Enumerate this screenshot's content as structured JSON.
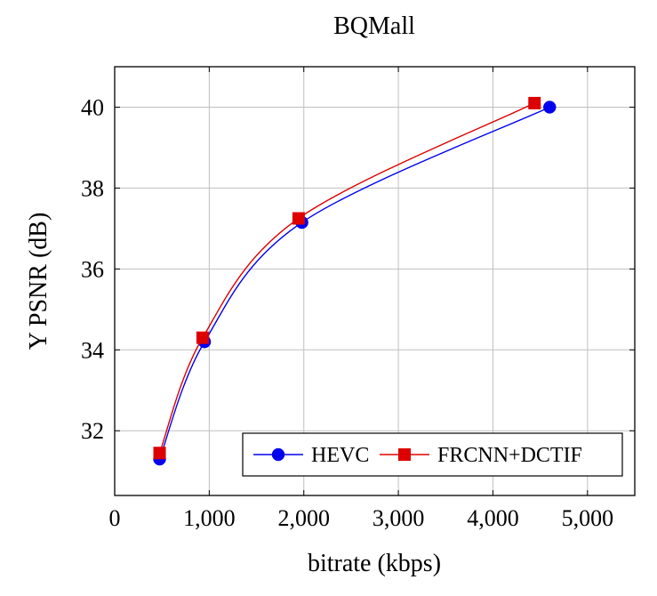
{
  "chart_data": {
    "type": "line",
    "title": "BQMall",
    "xlabel": "bitrate (kbps)",
    "ylabel": "Y PSNR (dB)",
    "xlim": [
      0,
      5500
    ],
    "ylim": [
      30.4,
      41.0
    ],
    "xticks": [
      0,
      1000,
      2000,
      3000,
      4000,
      5000
    ],
    "xtick_labels": [
      "0",
      "1,000",
      "2,000",
      "3,000",
      "4,000",
      "5,000"
    ],
    "yticks": [
      32,
      34,
      36,
      38,
      40
    ],
    "ytick_labels": [
      "32",
      "34",
      "36",
      "38",
      "40"
    ],
    "grid": true,
    "legend_position": "bottom-right",
    "series": [
      {
        "name": "HEVC",
        "color": "#0000ee",
        "marker": "circle",
        "x": [
          475,
          950,
          1980,
          4600
        ],
        "y": [
          31.3,
          34.2,
          37.15,
          40.0
        ]
      },
      {
        "name": "FRCNN+DCTIF",
        "color": "#dd0000",
        "marker": "square",
        "x": [
          475,
          930,
          1945,
          4440
        ],
        "y": [
          31.45,
          34.3,
          37.25,
          40.1
        ]
      }
    ]
  }
}
